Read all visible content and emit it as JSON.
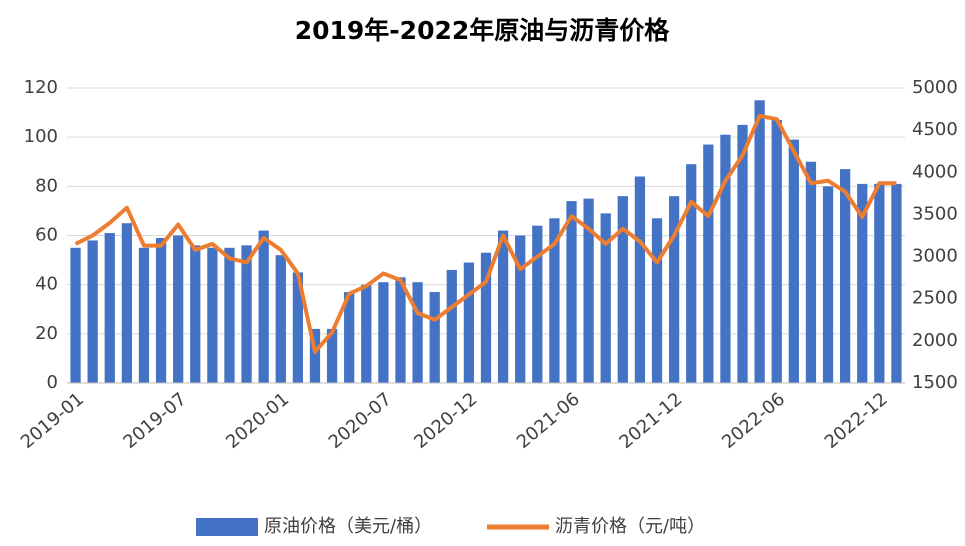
{
  "chart_data": {
    "type": "bar-line",
    "title": "2019年-2022年原油与沥青价格",
    "categories": [
      "2019-01",
      null,
      null,
      null,
      null,
      null,
      "2019-07",
      null,
      null,
      null,
      null,
      null,
      "2020-01",
      null,
      null,
      null,
      null,
      null,
      "2020-07",
      null,
      null,
      null,
      null,
      "2020-12",
      null,
      null,
      null,
      null,
      null,
      "2021-06",
      null,
      null,
      null,
      null,
      null,
      "2021-12",
      null,
      null,
      null,
      null,
      null,
      "2022-06",
      null,
      null,
      null,
      null,
      null,
      "2022-12",
      null
    ],
    "series": [
      {
        "name": "原油价格（美元/桶）",
        "type": "bar",
        "color": "#4472c4",
        "axis": "y",
        "values": [
          55,
          58,
          61,
          65,
          55,
          59,
          60,
          56,
          55,
          55,
          56,
          62,
          52,
          45,
          22,
          22,
          37,
          40,
          41,
          43,
          41,
          37,
          46,
          49,
          53,
          62,
          60,
          64,
          67,
          74,
          75,
          69,
          76,
          84,
          67,
          76,
          89,
          97,
          101,
          105,
          115,
          107,
          99,
          90,
          80,
          87,
          81,
          81,
          81
        ]
      },
      {
        "name": "沥青价格（元/吨）",
        "type": "line",
        "color": "#ed7d31",
        "axis": "y2",
        "values": [
          3150,
          3250,
          3400,
          3580,
          3130,
          3130,
          3380,
          3080,
          3150,
          2980,
          2930,
          3220,
          3080,
          2800,
          1870,
          2100,
          2560,
          2650,
          2800,
          2720,
          2330,
          2250,
          2400,
          2550,
          2700,
          3250,
          2850,
          3000,
          3150,
          3480,
          3330,
          3150,
          3330,
          3180,
          2930,
          3250,
          3650,
          3480,
          3900,
          4200,
          4670,
          4630,
          4250,
          3870,
          3900,
          3770,
          3470,
          3870,
          3870
        ]
      }
    ],
    "ylim": [
      0,
      120
    ],
    "yticks": [
      0,
      20,
      40,
      60,
      80,
      100,
      120
    ],
    "y2lim": [
      1500,
      5000
    ],
    "y2ticks": [
      1500,
      2000,
      2500,
      3000,
      3500,
      4000,
      4500,
      5000
    ],
    "legend": "bottom"
  }
}
